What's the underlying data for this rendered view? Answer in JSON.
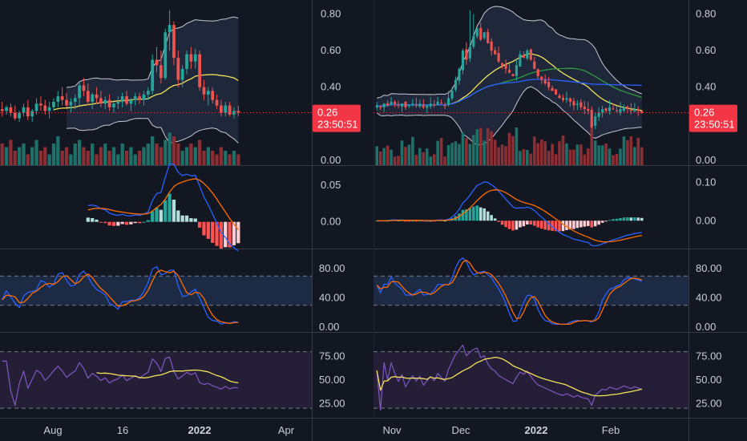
{
  "colors": {
    "background": "#131722",
    "divider": "#363a45",
    "up": "#26a69a",
    "down": "#ef5350",
    "vol_up": "#1e7068",
    "vol_down": "#8b2f35",
    "price_tag": "#f23645",
    "ma_fast": "#f5e15b",
    "ma_green": "#2e9b3e",
    "ma_blue": "#2962ff",
    "band": "#c8c8d0",
    "macd": "#2962ff",
    "signal": "#ff6d00",
    "stoch_k": "#2962ff",
    "stoch_d": "#ff6d00",
    "rsi": "#7e57c2",
    "rsi_ma": "#f5e15b"
  },
  "left_chart": {
    "price_axis_ticks": [
      "0.80",
      "0.60",
      "0.40",
      "0.00"
    ],
    "last_price": "0.26",
    "countdown": "23:50:51",
    "macd_axis_ticks": [
      "0.05",
      "0.00"
    ],
    "stoch_axis_ticks": [
      "80.00",
      "40.00",
      "0.00"
    ],
    "rsi_axis_ticks": [
      "75.00",
      "50.00",
      "25.00"
    ],
    "time_labels": [
      {
        "text": "Aug",
        "bold": false
      },
      {
        "text": "16",
        "bold": false
      },
      {
        "text": "2022",
        "bold": true
      },
      {
        "text": "Apr",
        "bold": false
      }
    ]
  },
  "right_chart": {
    "price_axis_ticks": [
      "0.80",
      "0.60",
      "0.40",
      "0.20",
      "0.00"
    ],
    "last_price": "0.26",
    "countdown": "23:50:51",
    "macd_axis_ticks": [
      "0.10",
      "0.00"
    ],
    "stoch_axis_ticks": [
      "80.00",
      "40.00",
      "0.00"
    ],
    "rsi_axis_ticks": [
      "75.00",
      "50.00",
      "25.00"
    ],
    "time_labels": [
      {
        "text": "Nov",
        "bold": false
      },
      {
        "text": "Dec",
        "bold": false
      },
      {
        "text": "2022",
        "bold": true
      },
      {
        "text": "Feb",
        "bold": false
      }
    ]
  },
  "chart_data": [
    {
      "type": "candlestick",
      "panel": "left",
      "indicators": [
        "Bollinger Bands",
        "Volume",
        "MACD",
        "Stochastic",
        "RSI"
      ],
      "price_ylim": [
        0.0,
        0.85
      ],
      "candles": [
        [
          0.28,
          0.32,
          0.24,
          0.27
        ],
        [
          0.27,
          0.3,
          0.25,
          0.29
        ],
        [
          0.29,
          0.31,
          0.24,
          0.26
        ],
        [
          0.26,
          0.3,
          0.22,
          0.23
        ],
        [
          0.23,
          0.27,
          0.21,
          0.26
        ],
        [
          0.26,
          0.31,
          0.24,
          0.29
        ],
        [
          0.29,
          0.33,
          0.22,
          0.24
        ],
        [
          0.24,
          0.28,
          0.21,
          0.27
        ],
        [
          0.27,
          0.34,
          0.25,
          0.31
        ],
        [
          0.31,
          0.35,
          0.27,
          0.3
        ],
        [
          0.3,
          0.33,
          0.25,
          0.27
        ],
        [
          0.27,
          0.32,
          0.23,
          0.29
        ],
        [
          0.29,
          0.34,
          0.27,
          0.32
        ],
        [
          0.32,
          0.38,
          0.29,
          0.35
        ],
        [
          0.35,
          0.4,
          0.3,
          0.33
        ],
        [
          0.33,
          0.37,
          0.29,
          0.3
        ],
        [
          0.3,
          0.34,
          0.26,
          0.32
        ],
        [
          0.32,
          0.36,
          0.28,
          0.34
        ],
        [
          0.34,
          0.43,
          0.3,
          0.41
        ],
        [
          0.41,
          0.45,
          0.35,
          0.38
        ],
        [
          0.38,
          0.42,
          0.3,
          0.32
        ],
        [
          0.32,
          0.37,
          0.28,
          0.36
        ],
        [
          0.36,
          0.4,
          0.31,
          0.34
        ],
        [
          0.34,
          0.38,
          0.29,
          0.31
        ],
        [
          0.31,
          0.35,
          0.28,
          0.33
        ],
        [
          0.33,
          0.36,
          0.27,
          0.29
        ],
        [
          0.29,
          0.32,
          0.26,
          0.31
        ],
        [
          0.31,
          0.35,
          0.28,
          0.32
        ],
        [
          0.32,
          0.37,
          0.29,
          0.35
        ],
        [
          0.35,
          0.38,
          0.3,
          0.31
        ],
        [
          0.31,
          0.34,
          0.27,
          0.33
        ],
        [
          0.33,
          0.37,
          0.3,
          0.35
        ],
        [
          0.35,
          0.37,
          0.31,
          0.33
        ],
        [
          0.33,
          0.38,
          0.3,
          0.36
        ],
        [
          0.36,
          0.4,
          0.33,
          0.38
        ],
        [
          0.38,
          0.58,
          0.36,
          0.55
        ],
        [
          0.55,
          0.62,
          0.48,
          0.52
        ],
        [
          0.52,
          0.6,
          0.42,
          0.45
        ],
        [
          0.45,
          0.72,
          0.44,
          0.7
        ],
        [
          0.7,
          0.82,
          0.6,
          0.74
        ],
        [
          0.74,
          0.76,
          0.52,
          0.56
        ],
        [
          0.56,
          0.6,
          0.4,
          0.44
        ],
        [
          0.44,
          0.52,
          0.4,
          0.5
        ],
        [
          0.5,
          0.6,
          0.47,
          0.58
        ],
        [
          0.58,
          0.62,
          0.5,
          0.54
        ],
        [
          0.54,
          0.61,
          0.5,
          0.58
        ],
        [
          0.58,
          0.6,
          0.38,
          0.4
        ],
        [
          0.4,
          0.44,
          0.33,
          0.36
        ],
        [
          0.36,
          0.4,
          0.3,
          0.38
        ],
        [
          0.38,
          0.4,
          0.31,
          0.33
        ],
        [
          0.33,
          0.36,
          0.28,
          0.3
        ],
        [
          0.3,
          0.33,
          0.24,
          0.26
        ],
        [
          0.26,
          0.32,
          0.24,
          0.3
        ],
        [
          0.3,
          0.32,
          0.24,
          0.25
        ],
        [
          0.25,
          0.29,
          0.23,
          0.27
        ],
        [
          0.27,
          0.3,
          0.24,
          0.26
        ]
      ],
      "volume": [
        0.6,
        0.5,
        0.7,
        0.4,
        0.5,
        0.6,
        0.3,
        0.5,
        0.7,
        0.4,
        0.5,
        0.3,
        0.6,
        0.8,
        0.4,
        0.5,
        0.3,
        0.6,
        0.7,
        0.5,
        0.4,
        0.6,
        0.3,
        0.5,
        0.6,
        0.4,
        0.5,
        0.3,
        0.6,
        0.4,
        0.5,
        0.3,
        0.4,
        0.5,
        0.6,
        0.8,
        0.6,
        0.5,
        0.7,
        0.9,
        0.8,
        0.6,
        0.4,
        0.5,
        0.6,
        0.5,
        0.7,
        0.4,
        0.5,
        0.4,
        0.3,
        0.5,
        0.4,
        0.3,
        0.4,
        0.3
      ],
      "bollinger": {
        "upper": [
          [
            0.66
          ],
          [
            0.66
          ],
          [
            0.66
          ],
          [
            0.66
          ]
        ],
        "basis_anchor": {
          "start": 12,
          "values": [
            0.3,
            0.31,
            0.32,
            0.33,
            0.33,
            0.34,
            0.36,
            0.38,
            0.39,
            0.4,
            0.4
          ]
        }
      },
      "macd_ylim": [
        -0.03,
        0.07
      ],
      "stoch_ylim": [
        0,
        100
      ],
      "rsi_ylim": [
        15,
        95
      ]
    },
    {
      "type": "candlestick",
      "panel": "right",
      "indicators": [
        "Bollinger Bands",
        "Moving averages",
        "Volume",
        "MACD",
        "Stochastic",
        "RSI"
      ],
      "price_ylim": [
        0.0,
        0.85
      ],
      "macd_ylim": [
        -0.06,
        0.13
      ],
      "stoch_ylim": [
        0,
        100
      ],
      "rsi_ylim": [
        15,
        95
      ]
    }
  ]
}
